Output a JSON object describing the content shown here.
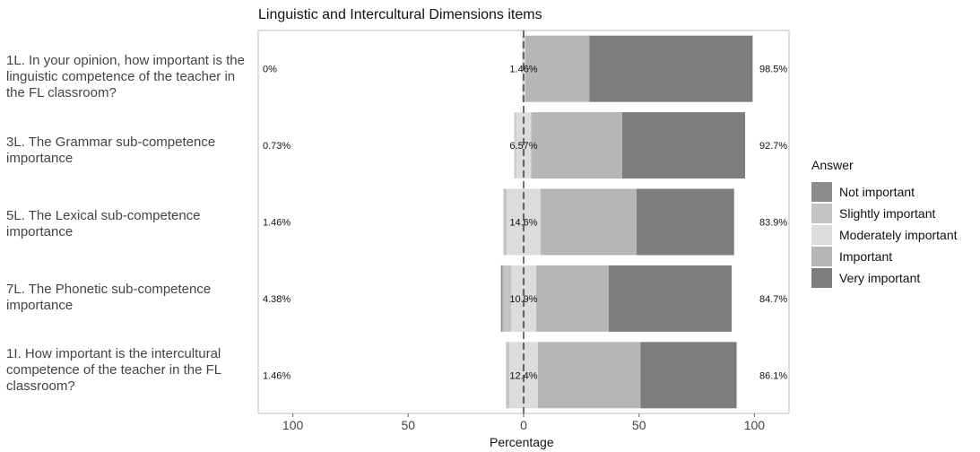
{
  "chart_data": {
    "type": "bar",
    "title": "Linguistic and Intercultural Dimensions items",
    "xlabel": "Percentage",
    "xlim": [
      -115,
      115
    ],
    "x_ticks": [
      "100",
      "50",
      "0",
      "50",
      "100"
    ],
    "x_tick_values": [
      -100,
      -50,
      0,
      50,
      100
    ],
    "legend_title": "Answer",
    "legend_placement": "right",
    "categories": [
      "1L. In your opinion, how important is the linguistic competence of the teacher in the FL classroom?",
      "3L. The Grammar sub-competence importance",
      "5L. The Lexical sub-competence importance",
      "7L. The Phonetic sub-competence importance",
      "1I. How important is the intercultural competence of the teacher in the FL classroom?"
    ],
    "series": [
      {
        "name": "Not important",
        "color": "#8c8c8c",
        "values": [
          0,
          0,
          0,
          0.73,
          0
        ]
      },
      {
        "name": "Slightly important",
        "color": "#c4c4c4",
        "values": [
          0,
          0.73,
          1.46,
          3.65,
          1.46
        ]
      },
      {
        "name": "Moderately important",
        "color": "#dcdcdc",
        "values": [
          1.46,
          6.57,
          14.6,
          10.9,
          12.4
        ]
      },
      {
        "name": "Important",
        "color": "#b4b6b7",
        "values": [
          27.7,
          39.4,
          41.6,
          31.4,
          44.5
        ]
      },
      {
        "name": "Very important",
        "color": "#7b7d7f",
        "values": [
          70.8,
          53.3,
          42.3,
          53.3,
          41.6
        ]
      }
    ],
    "left_labels": [
      "0%",
      "0.73%",
      "1.46%",
      "4.38%",
      "1.46%"
    ],
    "center_labels": [
      "1.46%",
      "6.57%",
      "14.6%",
      "10.9%",
      "12.4%"
    ],
    "right_labels": [
      "98.5%",
      "92.7%",
      "83.9%",
      "84.7%",
      "86.1%"
    ]
  }
}
